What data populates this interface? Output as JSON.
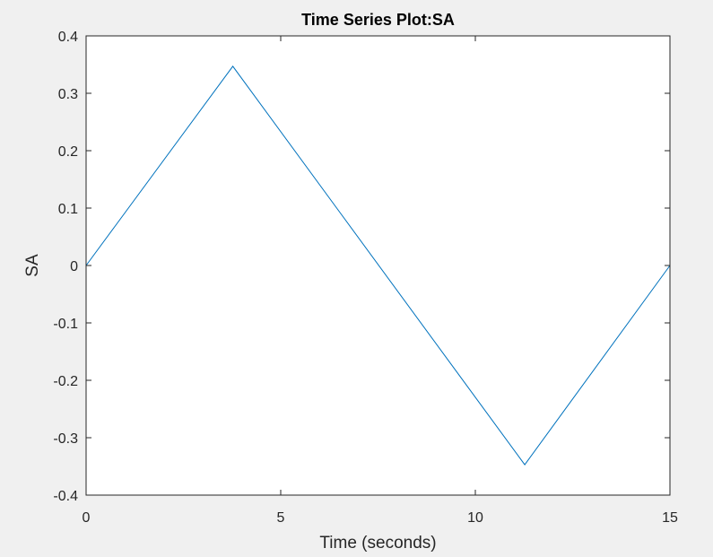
{
  "colors": {
    "background": "#f0f0f0",
    "axes_background": "#ffffff",
    "axis_color": "#262626",
    "line_color": "#0072bd"
  },
  "chart_data": {
    "type": "line",
    "title": "Time Series Plot:SA",
    "xlabel": "Time (seconds)",
    "ylabel": "SA",
    "xlim": [
      0,
      15
    ],
    "ylim": [
      -0.4,
      0.4
    ],
    "grid": false,
    "xticks": [
      0,
      5,
      10,
      15
    ],
    "xtick_labels": [
      "0",
      "5",
      "10",
      "15"
    ],
    "yticks": [
      -0.4,
      -0.3,
      -0.2,
      -0.1,
      0,
      0.1,
      0.2,
      0.3,
      0.4
    ],
    "ytick_labels": [
      "-0.4",
      "-0.3",
      "-0.2",
      "-0.1",
      "0",
      "0.1",
      "0.2",
      "0.3",
      "0.4"
    ],
    "series": [
      {
        "name": "SA",
        "x": [
          0,
          3.77,
          11.27,
          15
        ],
        "y": [
          0,
          0.347,
          -0.347,
          0
        ]
      }
    ]
  }
}
